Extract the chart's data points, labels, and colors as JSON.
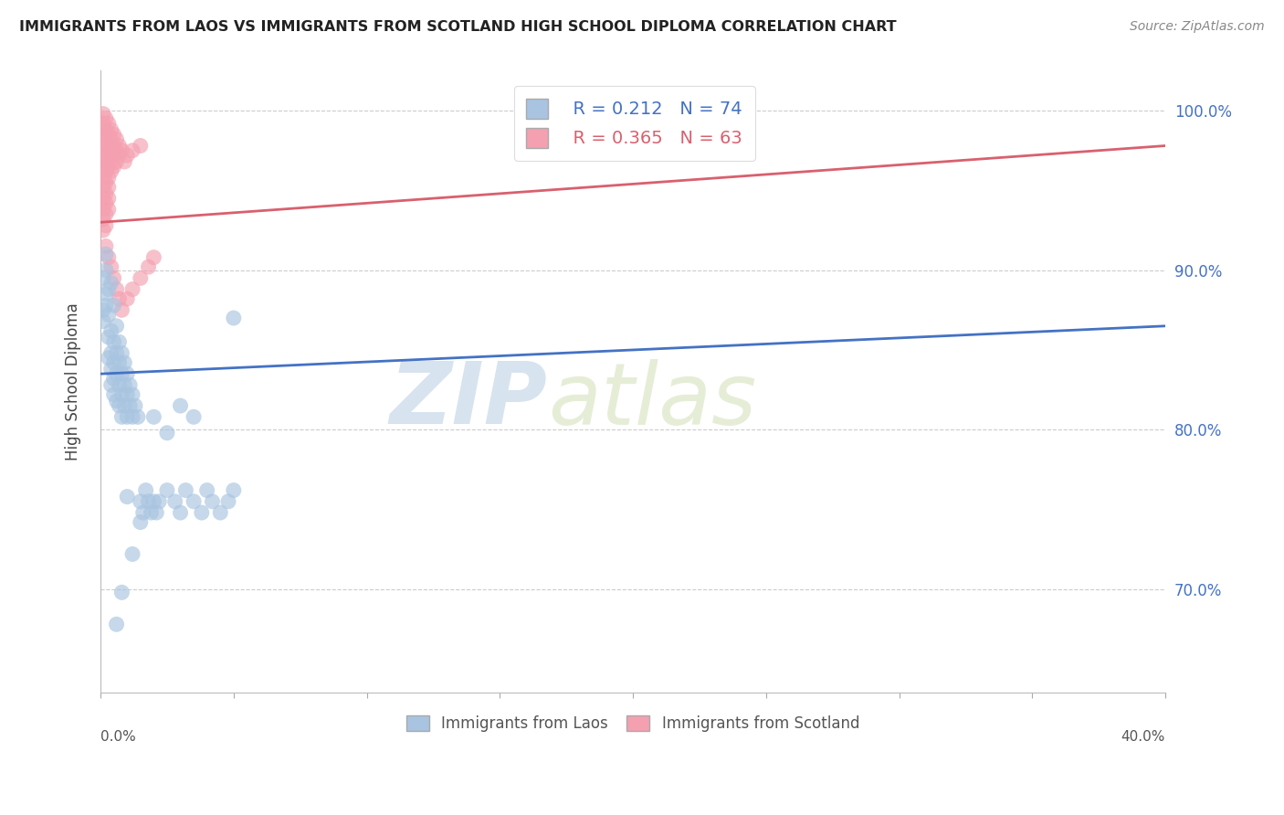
{
  "title": "IMMIGRANTS FROM LAOS VS IMMIGRANTS FROM SCOTLAND HIGH SCHOOL DIPLOMA CORRELATION CHART",
  "source": "Source: ZipAtlas.com",
  "ylabel": "High School Diploma",
  "xmin": 0.0,
  "xmax": 0.4,
  "ymin": 0.635,
  "ymax": 1.025,
  "yticks": [
    0.7,
    0.8,
    0.9,
    1.0
  ],
  "ytick_labels": [
    "70.0%",
    "80.0%",
    "90.0%",
    "100.0%"
  ],
  "legend_r_laos": "R = 0.212",
  "legend_n_laos": "N = 74",
  "legend_r_scotland": "R = 0.365",
  "legend_n_scotland": "N = 63",
  "laos_color": "#a8c4e0",
  "scotland_color": "#f4a0b0",
  "laos_line_color": "#4472c4",
  "scotland_line_color": "#d9606e",
  "watermark_zip": "ZIP",
  "watermark_atlas": "atlas",
  "laos_points": [
    [
      0.001,
      0.875
    ],
    [
      0.001,
      0.868
    ],
    [
      0.001,
      0.895
    ],
    [
      0.002,
      0.885
    ],
    [
      0.002,
      0.878
    ],
    [
      0.002,
      0.9
    ],
    [
      0.002,
      0.91
    ],
    [
      0.003,
      0.872
    ],
    [
      0.003,
      0.888
    ],
    [
      0.003,
      0.858
    ],
    [
      0.003,
      0.845
    ],
    [
      0.004,
      0.862
    ],
    [
      0.004,
      0.848
    ],
    [
      0.004,
      0.838
    ],
    [
      0.004,
      0.828
    ],
    [
      0.004,
      0.892
    ],
    [
      0.005,
      0.855
    ],
    [
      0.005,
      0.842
    ],
    [
      0.005,
      0.832
    ],
    [
      0.005,
      0.878
    ],
    [
      0.005,
      0.822
    ],
    [
      0.006,
      0.848
    ],
    [
      0.006,
      0.835
    ],
    [
      0.006,
      0.865
    ],
    [
      0.006,
      0.818
    ],
    [
      0.007,
      0.855
    ],
    [
      0.007,
      0.842
    ],
    [
      0.007,
      0.828
    ],
    [
      0.007,
      0.815
    ],
    [
      0.008,
      0.848
    ],
    [
      0.008,
      0.835
    ],
    [
      0.008,
      0.822
    ],
    [
      0.008,
      0.808
    ],
    [
      0.009,
      0.842
    ],
    [
      0.009,
      0.828
    ],
    [
      0.009,
      0.815
    ],
    [
      0.01,
      0.835
    ],
    [
      0.01,
      0.822
    ],
    [
      0.01,
      0.808
    ],
    [
      0.011,
      0.828
    ],
    [
      0.011,
      0.815
    ],
    [
      0.012,
      0.822
    ],
    [
      0.012,
      0.808
    ],
    [
      0.013,
      0.815
    ],
    [
      0.014,
      0.808
    ],
    [
      0.015,
      0.755
    ],
    [
      0.016,
      0.748
    ],
    [
      0.017,
      0.762
    ],
    [
      0.018,
      0.755
    ],
    [
      0.019,
      0.748
    ],
    [
      0.02,
      0.755
    ],
    [
      0.021,
      0.748
    ],
    [
      0.022,
      0.755
    ],
    [
      0.025,
      0.762
    ],
    [
      0.028,
      0.755
    ],
    [
      0.03,
      0.748
    ],
    [
      0.032,
      0.762
    ],
    [
      0.035,
      0.755
    ],
    [
      0.038,
      0.748
    ],
    [
      0.04,
      0.762
    ],
    [
      0.042,
      0.755
    ],
    [
      0.045,
      0.748
    ],
    [
      0.048,
      0.755
    ],
    [
      0.05,
      0.762
    ],
    [
      0.02,
      0.808
    ],
    [
      0.025,
      0.798
    ],
    [
      0.03,
      0.815
    ],
    [
      0.035,
      0.808
    ],
    [
      0.05,
      0.87
    ],
    [
      0.01,
      0.758
    ],
    [
      0.015,
      0.742
    ],
    [
      0.012,
      0.722
    ],
    [
      0.008,
      0.698
    ],
    [
      0.006,
      0.678
    ]
  ],
  "scotland_points": [
    [
      0.001,
      0.998
    ],
    [
      0.001,
      0.992
    ],
    [
      0.001,
      0.985
    ],
    [
      0.001,
      0.978
    ],
    [
      0.001,
      0.972
    ],
    [
      0.001,
      0.965
    ],
    [
      0.001,
      0.958
    ],
    [
      0.001,
      0.952
    ],
    [
      0.001,
      0.945
    ],
    [
      0.001,
      0.938
    ],
    [
      0.001,
      0.932
    ],
    [
      0.001,
      0.925
    ],
    [
      0.002,
      0.995
    ],
    [
      0.002,
      0.988
    ],
    [
      0.002,
      0.982
    ],
    [
      0.002,
      0.975
    ],
    [
      0.002,
      0.968
    ],
    [
      0.002,
      0.962
    ],
    [
      0.002,
      0.955
    ],
    [
      0.002,
      0.948
    ],
    [
      0.002,
      0.942
    ],
    [
      0.002,
      0.935
    ],
    [
      0.002,
      0.928
    ],
    [
      0.003,
      0.992
    ],
    [
      0.003,
      0.985
    ],
    [
      0.003,
      0.978
    ],
    [
      0.003,
      0.972
    ],
    [
      0.003,
      0.965
    ],
    [
      0.003,
      0.958
    ],
    [
      0.003,
      0.952
    ],
    [
      0.003,
      0.945
    ],
    [
      0.003,
      0.938
    ],
    [
      0.004,
      0.988
    ],
    [
      0.004,
      0.982
    ],
    [
      0.004,
      0.975
    ],
    [
      0.004,
      0.968
    ],
    [
      0.004,
      0.962
    ],
    [
      0.005,
      0.985
    ],
    [
      0.005,
      0.978
    ],
    [
      0.005,
      0.972
    ],
    [
      0.005,
      0.965
    ],
    [
      0.006,
      0.982
    ],
    [
      0.006,
      0.975
    ],
    [
      0.006,
      0.968
    ],
    [
      0.007,
      0.978
    ],
    [
      0.007,
      0.972
    ],
    [
      0.008,
      0.975
    ],
    [
      0.009,
      0.968
    ],
    [
      0.01,
      0.972
    ],
    [
      0.012,
      0.975
    ],
    [
      0.015,
      0.978
    ],
    [
      0.002,
      0.915
    ],
    [
      0.003,
      0.908
    ],
    [
      0.004,
      0.902
    ],
    [
      0.005,
      0.895
    ],
    [
      0.006,
      0.888
    ],
    [
      0.007,
      0.882
    ],
    [
      0.008,
      0.875
    ],
    [
      0.01,
      0.882
    ],
    [
      0.012,
      0.888
    ],
    [
      0.015,
      0.895
    ],
    [
      0.018,
      0.902
    ],
    [
      0.02,
      0.908
    ]
  ],
  "regression_laos": [
    0.0,
    0.4
  ],
  "regression_scotland": [
    0.0,
    0.4
  ]
}
